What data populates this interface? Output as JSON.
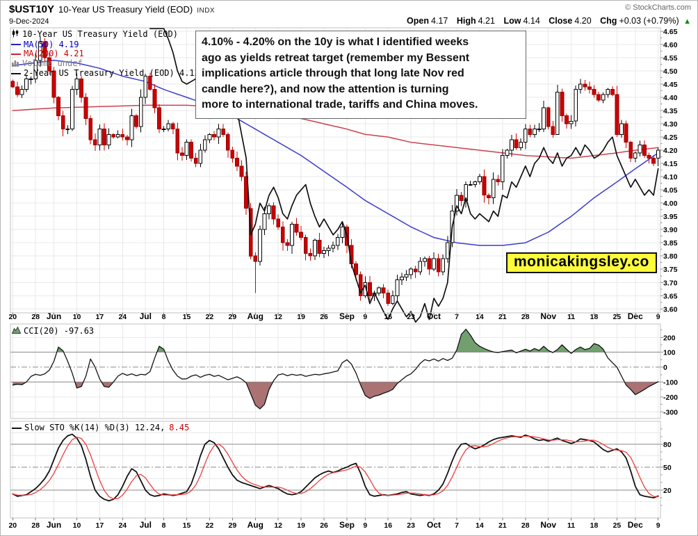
{
  "header": {
    "symbol": "$UST10Y",
    "title": "10-Year US Treasury Yield (EOD)",
    "exchange": "INDX",
    "date": "9-Dec-2024",
    "copyright": "© StockCharts.com",
    "quote": {
      "open_l": "Open",
      "open_v": "4.17",
      "high_l": "High",
      "high_v": "4.21",
      "low_l": "Low",
      "low_v": "4.14",
      "close_l": "Close",
      "close_v": "4.20",
      "chg_l": "Chg",
      "chg_v": "+0.03 (+0.79%)",
      "arrow": "▲"
    }
  },
  "legend_main": {
    "items": [
      {
        "label": "10-Year US Treasury Yield (EOD)",
        "icon": "candlestick-icon",
        "color": "#000000"
      },
      {
        "label": "MA(50) 4.19",
        "icon": "line-swatch",
        "color": "#0000cc"
      },
      {
        "label": "MA(200) 4.21",
        "icon": "line-swatch",
        "color": "#cc0000"
      },
      {
        "label": "Volume undef",
        "icon": "volume-bars-icon",
        "color": "#808080"
      },
      {
        "label": "2-Year US Treasury Yield (EOD) 4.13",
        "icon": "line-swatch",
        "color": "#000000"
      }
    ]
  },
  "annotation": {
    "lines": [
      "4.10% - 4.20% on the 10y is what I identified weeks",
      "ago as yields retreat target (remember my Bessent",
      "implications article through that long late Nov red",
      "candle here?), and now the attention is turning",
      "more to international trade, tariffs and China moves."
    ]
  },
  "badge": {
    "text": "monicakingsley.co"
  },
  "colors": {
    "candle_up_fill": "#ffffff",
    "candle_up_stroke": "#000000",
    "candle_down": "#cc0000",
    "ma50": "#3a3ad0",
    "ma200": "#cc4050",
    "ust2y": "#111111",
    "cci_line": "#111111",
    "cci_fill_above": "#71a06e",
    "cci_fill_below": "#aa7272",
    "sto_k": "#111111",
    "sto_d": "#f03b3b",
    "grid": "#e9e9e9",
    "ref": "#8a8a8a",
    "border": "#c0c0c0",
    "chg_up": "#008800"
  },
  "chart_data": [
    {
      "type": "candlestick+line",
      "title": "10-Year US Treasury Yield (EOD)",
      "ylim": [
        3.585,
        4.663
      ],
      "y_ticks": [
        4.65,
        4.6,
        4.55,
        4.5,
        4.45,
        4.4,
        4.35,
        4.3,
        4.25,
        4.2,
        4.15,
        4.1,
        4.05,
        4.0,
        3.95,
        3.9,
        3.85,
        3.8,
        3.75,
        3.7,
        3.65,
        3.6
      ],
      "x_ticks": [
        [
          0,
          "20",
          0
        ],
        [
          5,
          "28",
          0
        ],
        [
          9,
          "Jun",
          1
        ],
        [
          14,
          "10",
          0
        ],
        [
          19,
          "17",
          0
        ],
        [
          24,
          "24",
          0
        ],
        [
          29,
          "Jul",
          1
        ],
        [
          33,
          "8",
          0
        ],
        [
          38,
          "15",
          0
        ],
        [
          43,
          "22",
          0
        ],
        [
          48,
          "29",
          0
        ],
        [
          53,
          "Aug",
          1
        ],
        [
          58,
          "12",
          0
        ],
        [
          63,
          "19",
          0
        ],
        [
          68,
          "26",
          0
        ],
        [
          73,
          "Sep",
          1
        ],
        [
          77,
          "9",
          0
        ],
        [
          82,
          "16",
          0
        ],
        [
          87,
          "23",
          0
        ],
        [
          92,
          "Oct",
          1
        ],
        [
          97,
          "7",
          0
        ],
        [
          102,
          "14",
          0
        ],
        [
          107,
          "21",
          0
        ],
        [
          112,
          "28",
          0
        ],
        [
          117,
          "Nov",
          1
        ],
        [
          122,
          "11",
          0
        ],
        [
          127,
          "18",
          0
        ],
        [
          132,
          "25",
          0
        ],
        [
          136,
          "Dec",
          1
        ],
        [
          141,
          "9",
          0
        ]
      ],
      "closes_10y": [
        4.44,
        4.41,
        4.43,
        4.47,
        4.47,
        4.54,
        4.61,
        4.55,
        4.5,
        4.4,
        4.33,
        4.28,
        4.28,
        4.43,
        4.47,
        4.4,
        4.32,
        4.24,
        4.22,
        4.28,
        4.22,
        4.26,
        4.25,
        4.26,
        4.25,
        4.24,
        4.33,
        4.29,
        4.4,
        4.48,
        4.43,
        4.36,
        4.28,
        4.28,
        4.3,
        4.28,
        4.19,
        4.18,
        4.23,
        4.17,
        4.15,
        4.2,
        4.24,
        4.26,
        4.25,
        4.28,
        4.26,
        4.2,
        4.17,
        4.14,
        4.1,
        3.98,
        3.8,
        3.78,
        3.9,
        3.96,
        3.99,
        3.94,
        3.91,
        3.85,
        3.84,
        3.92,
        3.89,
        3.87,
        3.81,
        3.8,
        3.86,
        3.81,
        3.82,
        3.83,
        3.84,
        3.87,
        3.91,
        3.84,
        3.77,
        3.73,
        3.65,
        3.7,
        3.65,
        3.66,
        3.68,
        3.66,
        3.62,
        3.65,
        3.71,
        3.72,
        3.73,
        3.75,
        3.74,
        3.78,
        3.79,
        3.75,
        3.79,
        3.74,
        3.79,
        3.85,
        3.97,
        4.03,
        4.01,
        4.07,
        4.07,
        4.08,
        4.1,
        4.03,
        4.02,
        4.09,
        4.08,
        4.18,
        4.2,
        4.24,
        4.21,
        4.23,
        4.28,
        4.26,
        4.28,
        4.28,
        4.36,
        4.29,
        4.26,
        4.42,
        4.33,
        4.3,
        4.31,
        4.43,
        4.45,
        4.44,
        4.43,
        4.41,
        4.39,
        4.41,
        4.43,
        4.41,
        4.26,
        4.3,
        4.23,
        4.17,
        4.19,
        4.22,
        4.18,
        4.17,
        4.15,
        4.2
      ],
      "overrides": {
        "6": {
          "high": 4.63
        },
        "53": {
          "low": 3.66
        },
        "119": {
          "low": 4.26
        },
        "141": {
          "open": 4.17,
          "high": 4.21,
          "low": 4.14
        }
      },
      "ma50_last": 4.19,
      "ma200_last": 4.21,
      "ust2y_last": 4.13,
      "ma50_keypoints": [
        [
          0,
          4.52
        ],
        [
          9,
          4.54
        ],
        [
          14,
          4.53
        ],
        [
          19,
          4.51
        ],
        [
          24,
          4.48
        ],
        [
          29,
          4.46
        ],
        [
          33,
          4.43
        ],
        [
          38,
          4.4
        ],
        [
          43,
          4.37
        ],
        [
          48,
          4.33
        ],
        [
          53,
          4.28
        ],
        [
          58,
          4.23
        ],
        [
          63,
          4.18
        ],
        [
          68,
          4.12
        ],
        [
          73,
          4.06
        ],
        [
          77,
          4.01
        ],
        [
          82,
          3.96
        ],
        [
          87,
          3.91
        ],
        [
          92,
          3.87
        ],
        [
          97,
          3.85
        ],
        [
          102,
          3.84
        ],
        [
          107,
          3.84
        ],
        [
          112,
          3.85
        ],
        [
          117,
          3.89
        ],
        [
          122,
          3.95
        ],
        [
          127,
          4.02
        ],
        [
          132,
          4.08
        ],
        [
          136,
          4.13
        ],
        [
          141,
          4.19
        ]
      ],
      "ma200_keypoints": [
        [
          0,
          4.35
        ],
        [
          9,
          4.36
        ],
        [
          19,
          4.365
        ],
        [
          29,
          4.37
        ],
        [
          38,
          4.37
        ],
        [
          48,
          4.36
        ],
        [
          53,
          4.35
        ],
        [
          58,
          4.34
        ],
        [
          63,
          4.32
        ],
        [
          68,
          4.3
        ],
        [
          73,
          4.28
        ],
        [
          77,
          4.26
        ],
        [
          82,
          4.25
        ],
        [
          87,
          4.23
        ],
        [
          92,
          4.22
        ],
        [
          97,
          4.21
        ],
        [
          102,
          4.2
        ],
        [
          107,
          4.19
        ],
        [
          112,
          4.18
        ],
        [
          117,
          4.175
        ],
        [
          122,
          4.17
        ],
        [
          127,
          4.18
        ],
        [
          132,
          4.19
        ],
        [
          136,
          4.2
        ],
        [
          141,
          4.21
        ]
      ],
      "ust2y_keypoints": [
        [
          30,
          4.66
        ],
        [
          33,
          4.66
        ],
        [
          34,
          4.62
        ],
        [
          35,
          4.57
        ],
        [
          36,
          4.5
        ],
        [
          37,
          4.46
        ],
        [
          38,
          4.45
        ],
        [
          40,
          4.47
        ],
        [
          41,
          4.44
        ],
        [
          43,
          4.48
        ],
        [
          45,
          4.43
        ],
        [
          47,
          4.39
        ],
        [
          48,
          4.38
        ],
        [
          49,
          4.35
        ],
        [
          50,
          4.26
        ],
        [
          51,
          4.17
        ],
        [
          52,
          3.88
        ],
        [
          53,
          3.92
        ],
        [
          54,
          4.0
        ],
        [
          55,
          3.97
        ],
        [
          56,
          4.03
        ],
        [
          57,
          4.06
        ],
        [
          58,
          4.02
        ],
        [
          59,
          3.96
        ],
        [
          60,
          3.94
        ],
        [
          61,
          3.99
        ],
        [
          62,
          4.03
        ],
        [
          64,
          4.07
        ],
        [
          65,
          4.0
        ],
        [
          66,
          3.95
        ],
        [
          67,
          3.91
        ],
        [
          68,
          3.94
        ],
        [
          70,
          3.88
        ],
        [
          71,
          3.9
        ],
        [
          72,
          3.93
        ],
        [
          73,
          3.88
        ],
        [
          74,
          3.77
        ],
        [
          76,
          3.66
        ],
        [
          77,
          3.69
        ],
        [
          78,
          3.62
        ],
        [
          79,
          3.66
        ],
        [
          81,
          3.59
        ],
        [
          82,
          3.56
        ],
        [
          83,
          3.6
        ],
        [
          84,
          3.63
        ],
        [
          86,
          3.57
        ],
        [
          87,
          3.59
        ],
        [
          88,
          3.55
        ],
        [
          89,
          3.57
        ],
        [
          90,
          3.62
        ],
        [
          91,
          3.56
        ],
        [
          92,
          3.64
        ],
        [
          93,
          3.61
        ],
        [
          94,
          3.64
        ],
        [
          95,
          3.7
        ],
        [
          96,
          3.91
        ],
        [
          97,
          3.99
        ],
        [
          98,
          3.96
        ],
        [
          99,
          4.02
        ],
        [
          100,
          3.96
        ],
        [
          101,
          3.94
        ],
        [
          102,
          3.96
        ],
        [
          104,
          3.93
        ],
        [
          105,
          3.97
        ],
        [
          106,
          3.95
        ],
        [
          107,
          4.03
        ],
        [
          108,
          4.02
        ],
        [
          109,
          4.08
        ],
        [
          110,
          4.06
        ],
        [
          111,
          4.1
        ],
        [
          112,
          4.14
        ],
        [
          113,
          4.1
        ],
        [
          114,
          4.15
        ],
        [
          115,
          4.17
        ],
        [
          116,
          4.21
        ],
        [
          117,
          4.17
        ],
        [
          118,
          4.15
        ],
        [
          119,
          4.19
        ],
        [
          120,
          4.14
        ],
        [
          121,
          4.17
        ],
        [
          122,
          4.18
        ],
        [
          123,
          4.21
        ],
        [
          124,
          4.18
        ],
        [
          125,
          4.22
        ],
        [
          126,
          4.2
        ],
        [
          127,
          4.17
        ],
        [
          128,
          4.18
        ],
        [
          129,
          4.2
        ],
        [
          130,
          4.23
        ],
        [
          131,
          4.25
        ],
        [
          132,
          4.18
        ],
        [
          133,
          4.14
        ],
        [
          134,
          4.1
        ],
        [
          135,
          4.06
        ],
        [
          136,
          4.09
        ],
        [
          137,
          4.06
        ],
        [
          138,
          4.03
        ],
        [
          139,
          4.05
        ],
        [
          140,
          4.03
        ],
        [
          141,
          4.13
        ]
      ]
    },
    {
      "type": "line+threshold-fill",
      "label_text": "CCI(20) -97.63",
      "last": -97.63,
      "upper": 100,
      "lower": -100,
      "mid": 0,
      "ylim": [
        -345,
        290
      ],
      "y_ticks": [
        200,
        100,
        0,
        -100,
        -200,
        -300
      ],
      "light_lines": [
        200,
        -200,
        -300
      ],
      "values": [
        -120,
        -115,
        -118,
        -100,
        -62,
        -48,
        -55,
        -45,
        -20,
        40,
        135,
        110,
        40,
        -40,
        -140,
        -130,
        -60,
        55,
        0,
        -80,
        -130,
        -135,
        -100,
        -60,
        -42,
        -55,
        -45,
        -58,
        -48,
        -52,
        -30,
        60,
        140,
        120,
        40,
        -20,
        -60,
        -80,
        -78,
        -60,
        -52,
        -68,
        -55,
        -48,
        -62,
        -55,
        -70,
        -85,
        -75,
        -65,
        -80,
        -105,
        -180,
        -255,
        -280,
        -250,
        -150,
        -90,
        -52,
        -45,
        -58,
        -48,
        -55,
        -50,
        -62,
        -55,
        -48,
        -52,
        -45,
        -40,
        -32,
        -25,
        30,
        50,
        20,
        -40,
        -120,
        -190,
        -210,
        -195,
        -188,
        -175,
        -165,
        -150,
        -110,
        -85,
        -60,
        -45,
        -15,
        25,
        50,
        42,
        55,
        40,
        58,
        45,
        60,
        115,
        220,
        255,
        215,
        165,
        140,
        125,
        112,
        102,
        98,
        104,
        110,
        115,
        96,
        108,
        120,
        108,
        125,
        112,
        140,
        112,
        98,
        118,
        150,
        120,
        92,
        118,
        135,
        118,
        125,
        158,
        148,
        120,
        62,
        30,
        0,
        -60,
        -120,
        -150,
        -185,
        -168,
        -150,
        -130,
        -115,
        -97.63
      ]
    },
    {
      "type": "line",
      "label_text": "Slow STO %K(14) %D(3) 12.24,",
      "d_last_text": "8.45",
      "k_last": 12.24,
      "d_last": 8.45,
      "upper": 80,
      "mid": 50,
      "lower": 20,
      "ylim": [
        -16.4,
        110
      ],
      "y_ticks": [
        80,
        50,
        20
      ],
      "light_lines": [
        95,
        65,
        35,
        5
      ],
      "k_values": [
        15,
        12,
        13,
        14,
        18,
        22,
        28,
        35,
        45,
        60,
        75,
        85,
        91,
        93,
        88,
        78,
        60,
        38,
        20,
        12,
        8,
        6,
        8,
        14,
        25,
        38,
        48,
        44,
        32,
        20,
        14,
        12,
        13,
        15,
        14,
        13,
        14,
        16,
        18,
        28,
        45,
        65,
        80,
        85,
        82,
        74,
        62,
        50,
        40,
        33,
        30,
        28,
        26,
        24,
        22,
        24,
        26,
        24,
        22,
        18,
        15,
        14,
        15,
        18,
        24,
        30,
        36,
        40,
        43,
        45,
        43,
        45,
        48,
        50,
        53,
        55,
        42,
        25,
        14,
        12,
        13,
        14,
        13,
        14,
        15,
        17,
        18,
        15,
        14,
        13,
        14,
        13,
        15,
        20,
        28,
        42,
        58,
        72,
        80,
        81,
        77,
        74,
        76,
        79,
        83,
        86,
        88,
        89,
        90,
        91,
        90,
        89,
        92,
        90,
        87,
        85,
        86,
        84,
        86,
        88,
        85,
        83,
        81,
        83,
        87,
        86,
        85,
        83,
        78,
        73,
        70,
        72,
        74,
        70,
        62,
        45,
        25,
        14,
        12,
        11,
        10,
        12.24
      ]
    }
  ]
}
